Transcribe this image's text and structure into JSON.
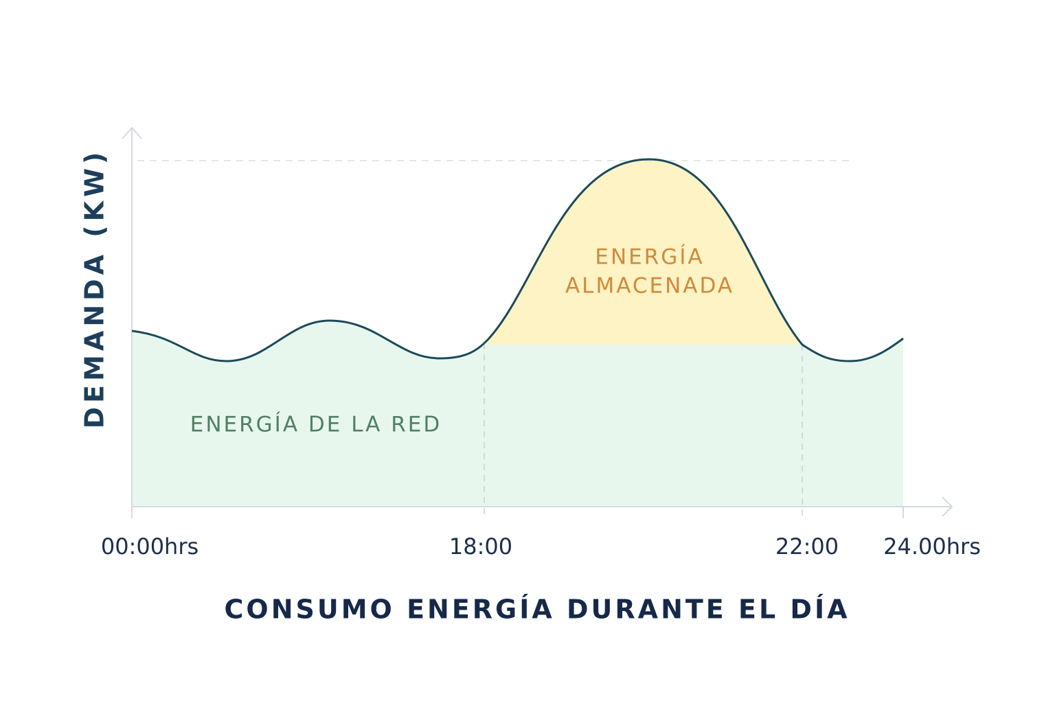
{
  "chart_data": {
    "type": "area",
    "title": "CONSUMO ENERGÍA DURANTE EL DÍA",
    "y_label": "DEMANDA (KW)",
    "xtick_labels": [
      "00:00hrs",
      "18:00",
      "22:00",
      "24.00hrs"
    ],
    "annotations": [
      "ENERGÍA",
      "ALMACENADA",
      "ENERGÍA DE LA RED"
    ]
  }
}
